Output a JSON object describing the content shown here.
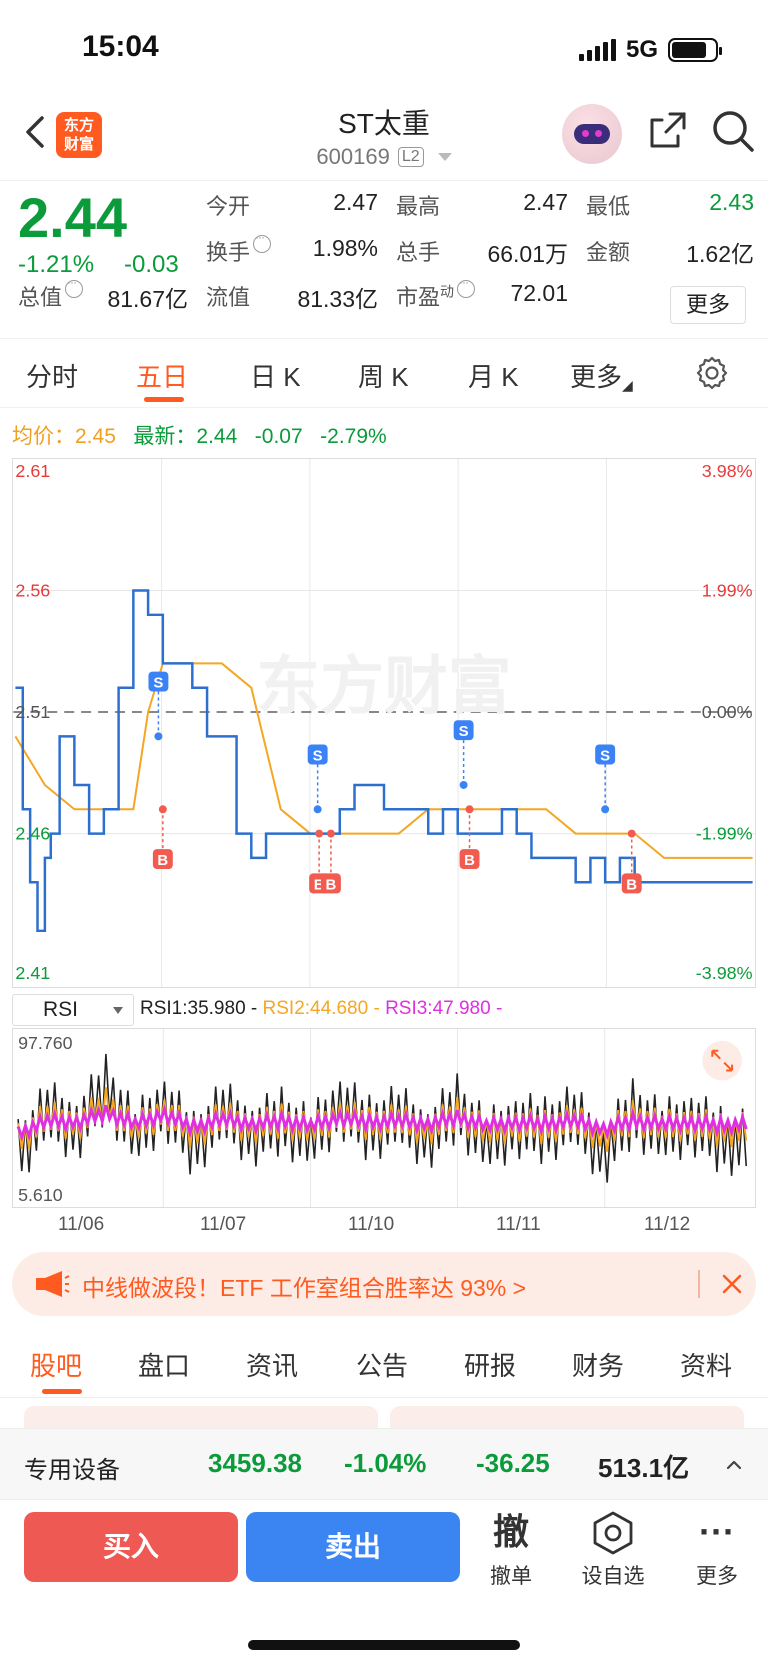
{
  "status_bar": {
    "time": "15:04",
    "network": "5G"
  },
  "header": {
    "logo_text_1": "东方",
    "logo_text_2": "财富",
    "stock_name": "ST太重",
    "stock_code": "600169",
    "level_badge": "L2"
  },
  "quote": {
    "price": "2.44",
    "change_pct": "-1.21%",
    "change_amt": "-0.03",
    "open_label": "今开",
    "open": "2.47",
    "high_label": "最高",
    "high": "2.47",
    "low_label": "最低",
    "low": "2.43",
    "turnover_label": "换手",
    "turnover": "1.98%",
    "volume_label": "总手",
    "volume": "66.01万",
    "amount_label": "金额",
    "amount": "1.62亿",
    "market_cap_label": "总值",
    "market_cap": "81.67亿",
    "float_cap_label": "流值",
    "float_cap": "81.33亿",
    "pe_label": "市盈",
    "pe_sup": "动",
    "pe": "72.01",
    "more_button": "更多"
  },
  "period_tabs": [
    "分时",
    "五日",
    "日 K",
    "周 K",
    "月 K",
    "更多"
  ],
  "active_period_tab": "五日",
  "legend": {
    "avg_label": "均价：",
    "avg_value": "2.45",
    "latest_label": "最新：",
    "latest_value": "2.44",
    "latest_change": "-0.07",
    "latest_pct": "-2.79%"
  },
  "rsi_header": {
    "indicator": "RSI",
    "rsi1": "RSI1:35.980 -",
    "rsi2": "RSI2:44.680 -",
    "rsi3": "RSI3:47.980 -"
  },
  "colors": {
    "up": "#e83a3a",
    "down": "#0b9b3a",
    "accent": "#ff5a1f",
    "price_line": "#2d6fcf",
    "avg_line": "#f5a623",
    "rsi3": "#e02fe0",
    "rsi1": "#222222"
  },
  "chart_data": [
    {
      "type": "line",
      "title": "",
      "xlabel": "",
      "ylabel": "",
      "ylim": [
        2.41,
        2.61
      ],
      "y_tick_labels": [
        "2.61",
        "2.56",
        "2.51",
        "2.46",
        "2.41"
      ],
      "y_right_tick_labels": [
        "3.98%",
        "1.99%",
        "0.00%",
        "-1.99%",
        "-3.98%"
      ],
      "reference_value": 2.51,
      "days": [
        "11/06",
        "11/07",
        "11/10",
        "11/11",
        "11/12"
      ],
      "series": [
        {
          "key": "price",
          "x": [
            0,
            0.5,
            1,
            1.5,
            2,
            2.4,
            3,
            4,
            5,
            6,
            7,
            8,
            9,
            10,
            11,
            12,
            13,
            14,
            15,
            16,
            17,
            18,
            19,
            20,
            21,
            22,
            23,
            24,
            25,
            26,
            27,
            28,
            29,
            30,
            31,
            32,
            33,
            34,
            35,
            36,
            37,
            38,
            39,
            40,
            41,
            42,
            43,
            44,
            45,
            46,
            47,
            48,
            49,
            50
          ],
          "y": [
            2.52,
            2.47,
            2.44,
            2.42,
            2.45,
            2.46,
            2.5,
            2.48,
            2.46,
            2.47,
            2.52,
            2.56,
            2.55,
            2.53,
            2.53,
            2.52,
            2.5,
            2.5,
            2.46,
            2.45,
            2.46,
            2.46,
            2.46,
            2.46,
            2.46,
            2.47,
            2.48,
            2.48,
            2.47,
            2.47,
            2.47,
            2.46,
            2.47,
            2.46,
            2.46,
            2.46,
            2.47,
            2.46,
            2.45,
            2.45,
            2.45,
            2.44,
            2.45,
            2.44,
            2.45,
            2.44,
            2.44,
            2.44,
            2.44,
            2.44,
            2.44,
            2.44,
            2.44,
            2.44
          ]
        },
        {
          "key": "avg",
          "x": [
            0,
            2,
            4,
            6,
            8,
            9,
            10,
            12,
            14,
            16,
            18,
            20,
            22,
            24,
            26,
            28,
            30,
            32,
            34,
            36,
            38,
            40,
            42,
            44,
            46,
            48,
            50
          ],
          "y": [
            2.5,
            2.48,
            2.47,
            2.47,
            2.47,
            2.51,
            2.53,
            2.53,
            2.53,
            2.52,
            2.47,
            2.46,
            2.46,
            2.46,
            2.46,
            2.47,
            2.47,
            2.47,
            2.47,
            2.47,
            2.46,
            2.46,
            2.46,
            2.45,
            2.45,
            2.45,
            2.45
          ]
        }
      ],
      "markers": [
        {
          "type": "S",
          "x": 9.7,
          "y": 2.5
        },
        {
          "type": "B",
          "x": 10.0,
          "y": 2.47
        },
        {
          "type": "S",
          "x": 20.5,
          "y": 2.47
        },
        {
          "type": "B",
          "x": 20.6,
          "y": 2.46
        },
        {
          "type": "B",
          "x": 21.4,
          "y": 2.46
        },
        {
          "type": "S",
          "x": 30.4,
          "y": 2.48
        },
        {
          "type": "B",
          "x": 30.8,
          "y": 2.47
        },
        {
          "type": "S",
          "x": 40.0,
          "y": 2.47
        },
        {
          "type": "B",
          "x": 41.8,
          "y": 2.46
        }
      ]
    },
    {
      "type": "line",
      "title": "",
      "ylim": [
        5.61,
        97.76
      ],
      "y_tick_labels": [
        "97.760",
        "5.610"
      ],
      "series": [
        {
          "key": "rsi1",
          "x": [
            0,
            2,
            4,
            6,
            8,
            10,
            12,
            14,
            16,
            18,
            20,
            22,
            24,
            26,
            28,
            30,
            32,
            34,
            36,
            38,
            40,
            42,
            44,
            46,
            48,
            50
          ],
          "y": [
            30,
            55,
            45,
            70,
            40,
            60,
            35,
            55,
            42,
            50,
            38,
            60,
            45,
            52,
            40,
            58,
            36,
            48,
            44,
            52,
            30,
            55,
            42,
            50,
            38,
            36
          ]
        },
        {
          "key": "rsi2",
          "x": [
            0,
            2,
            4,
            6,
            8,
            10,
            12,
            14,
            16,
            18,
            20,
            22,
            24,
            26,
            28,
            30,
            32,
            34,
            36,
            38,
            40,
            42,
            44,
            46,
            48,
            50
          ],
          "y": [
            38,
            52,
            48,
            60,
            45,
            56,
            42,
            52,
            46,
            50,
            44,
            54,
            48,
            50,
            45,
            54,
            43,
            48,
            46,
            50,
            40,
            52,
            46,
            49,
            44,
            45
          ]
        },
        {
          "key": "rsi3",
          "x": [
            0,
            2,
            4,
            6,
            8,
            10,
            12,
            14,
            16,
            18,
            20,
            22,
            24,
            26,
            28,
            30,
            32,
            34,
            36,
            38,
            40,
            42,
            44,
            46,
            48,
            50
          ],
          "y": [
            42,
            50,
            49,
            55,
            48,
            54,
            46,
            51,
            48,
            50,
            47,
            52,
            49,
            50,
            48,
            52,
            47,
            49,
            48,
            50,
            45,
            50,
            48,
            49,
            47,
            48
          ]
        }
      ]
    }
  ],
  "promo": {
    "text": "中线做波段！ETF 工作室组合胜率达 93% >"
  },
  "info_tabs": [
    "股吧",
    "盘口",
    "资讯",
    "公告",
    "研报",
    "财务",
    "资料"
  ],
  "active_info_tab": "股吧",
  "sector": {
    "name": "专用设备",
    "index": "3459.38",
    "pct": "-1.04%",
    "change": "-36.25",
    "amount": "513.1亿"
  },
  "bottom_bar": {
    "buy": "买入",
    "sell": "卖出",
    "cancel_glyph": "撤",
    "cancel": "撤单",
    "watchlist": "设自选",
    "more": "更多"
  }
}
